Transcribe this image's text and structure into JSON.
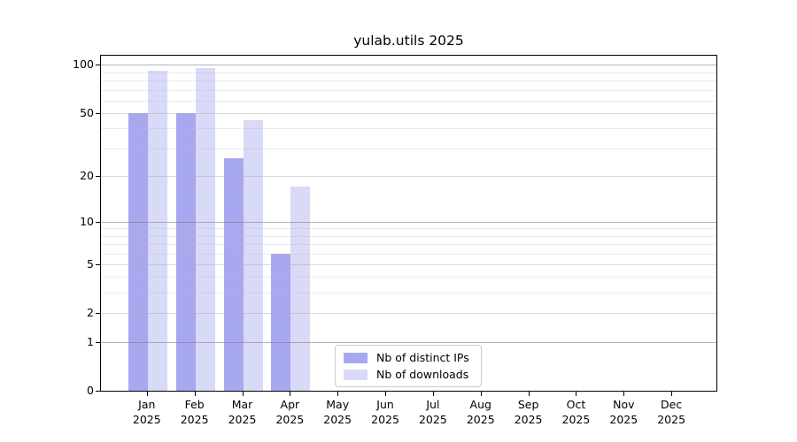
{
  "title": "yulab.utils 2025",
  "legend": {
    "items": [
      {
        "label": "Nb of distinct IPs",
        "color": "#a8a8f0"
      },
      {
        "label": "Nb of downloads",
        "color": "#d9d9f8"
      }
    ]
  },
  "chart_data": {
    "type": "bar",
    "title": "yulab.utils 2025",
    "months": [
      "Jan",
      "Feb",
      "Mar",
      "Apr",
      "May",
      "Jun",
      "Jul",
      "Aug",
      "Sep",
      "Oct",
      "Nov",
      "Dec"
    ],
    "year_label": "2025",
    "x_labels": [
      "Jan 2025",
      "Feb 2025",
      "Mar 2025",
      "Apr 2025",
      "May 2025",
      "Jun 2025",
      "Jul 2025",
      "Aug 2025",
      "Sep 2025",
      "Oct 2025",
      "Nov 2025",
      "Dec 2025"
    ],
    "series": [
      {
        "name": "Nb of distinct IPs",
        "color": "#a8a8f0",
        "values": [
          50,
          50,
          26,
          6,
          null,
          null,
          null,
          null,
          null,
          null,
          null,
          null
        ]
      },
      {
        "name": "Nb of downloads",
        "color": "#d9d9f8",
        "values": [
          92,
          96,
          45,
          17,
          null,
          null,
          null,
          null,
          null,
          null,
          null,
          null
        ]
      }
    ],
    "y_scale": "log1p",
    "y_major_ticks": [
      0,
      1,
      2,
      5,
      10,
      20,
      50,
      100
    ],
    "y_power10_gridlines": [
      1,
      10,
      100
    ],
    "y_minor_gridlines": [
      3,
      4,
      6,
      7,
      8,
      9,
      30,
      40,
      60,
      70,
      80,
      90
    ],
    "ylim": [
      0,
      117
    ],
    "grid": "horizontal",
    "legend_position": "lower-center-inside",
    "xlabel": "",
    "ylabel": ""
  },
  "colors": {
    "background": "#ffffff",
    "spine": "#000000",
    "bar_distinct_ips": "#a8a8f0",
    "bar_downloads": "#d9d9f8",
    "grid_power10": "#b0b0b0",
    "grid_labeled": "#d2d2d2",
    "grid_minor": "#e9e9e9"
  }
}
